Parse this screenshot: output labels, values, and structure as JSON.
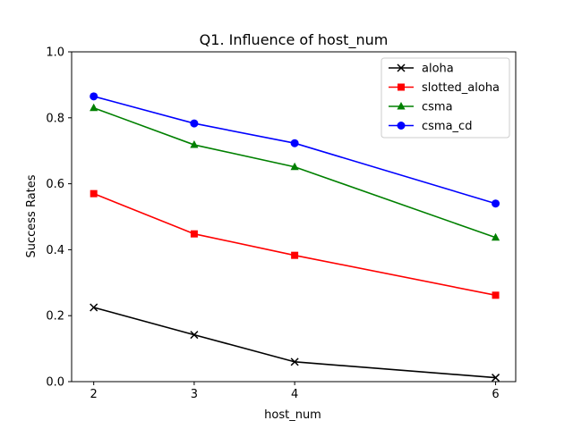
{
  "chart_data": {
    "type": "line",
    "title": "Q1. Influence of host_num",
    "xlabel": "host_num",
    "ylabel": "Success Rates",
    "x": [
      2,
      3,
      4,
      6
    ],
    "x_ticks": [
      "2",
      "3",
      "4",
      "6"
    ],
    "y_ticks": [
      "0.0",
      "0.2",
      "0.4",
      "0.6",
      "0.8",
      "1.0"
    ],
    "xlim": [
      1.78,
      6.2
    ],
    "ylim": [
      0.0,
      1.0
    ],
    "grid": false,
    "legend_position": "top-right",
    "series": [
      {
        "name": "aloha",
        "color": "#000000",
        "marker": "x",
        "values": [
          0.225,
          0.142,
          0.06,
          0.012
        ]
      },
      {
        "name": "slotted_aloha",
        "color": "#ff0000",
        "marker": "square",
        "values": [
          0.57,
          0.448,
          0.383,
          0.262
        ]
      },
      {
        "name": "csma",
        "color": "#008000",
        "marker": "triangle",
        "values": [
          0.83,
          0.718,
          0.651,
          0.437
        ]
      },
      {
        "name": "csma_cd",
        "color": "#0000ff",
        "marker": "circle",
        "values": [
          0.865,
          0.783,
          0.723,
          0.54
        ]
      }
    ]
  }
}
